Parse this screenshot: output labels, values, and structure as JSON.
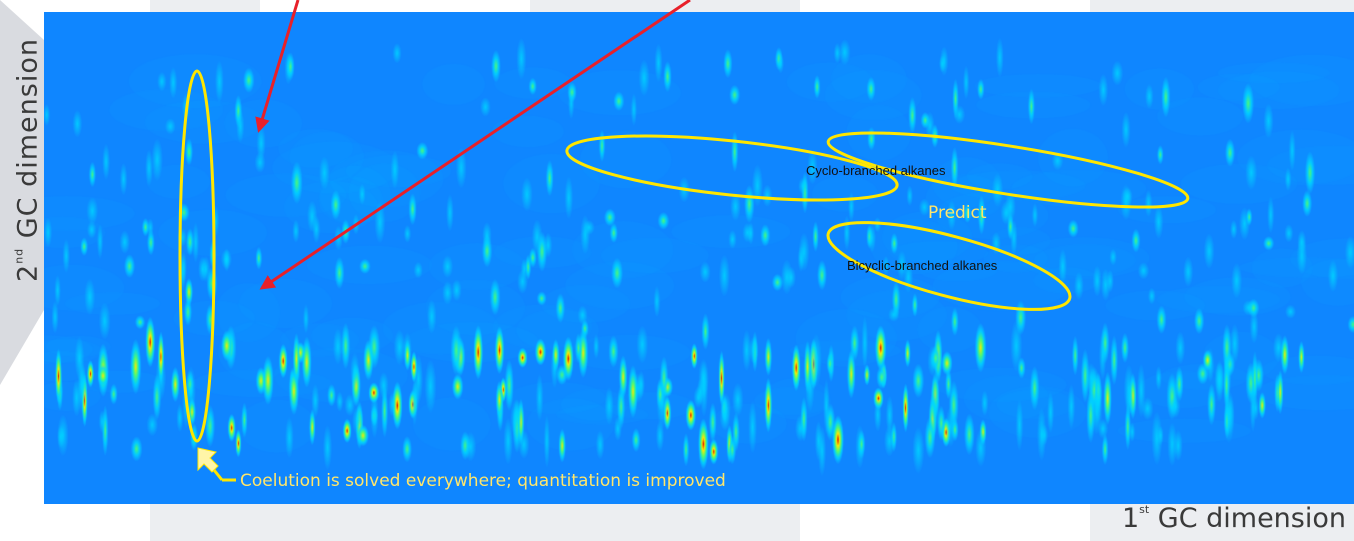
{
  "chart_data": {
    "type": "heatmap",
    "title": "",
    "xlabel_number": "1",
    "xlabel_sup": "st",
    "xlabel_text": " GC dimension",
    "ylabel_number": "2",
    "ylabel_sup": "nd",
    "ylabel_text": " GC dimension",
    "annotations": {
      "region_cyclo": "Cyclo-branched alkanes",
      "region_bicyclic": "Bicyclic-branched alkanes",
      "predict": "Predict",
      "coelution": "Coelution is solved everywhere; quantitation is improved"
    },
    "colors": {
      "background": "#0f86ff",
      "colormap": [
        "#0f86ff",
        "#00d8ff",
        "#5dff6a",
        "#ffe600",
        "#d70000"
      ],
      "highlight": "#ffe600",
      "arrow": "#e8202a"
    }
  }
}
